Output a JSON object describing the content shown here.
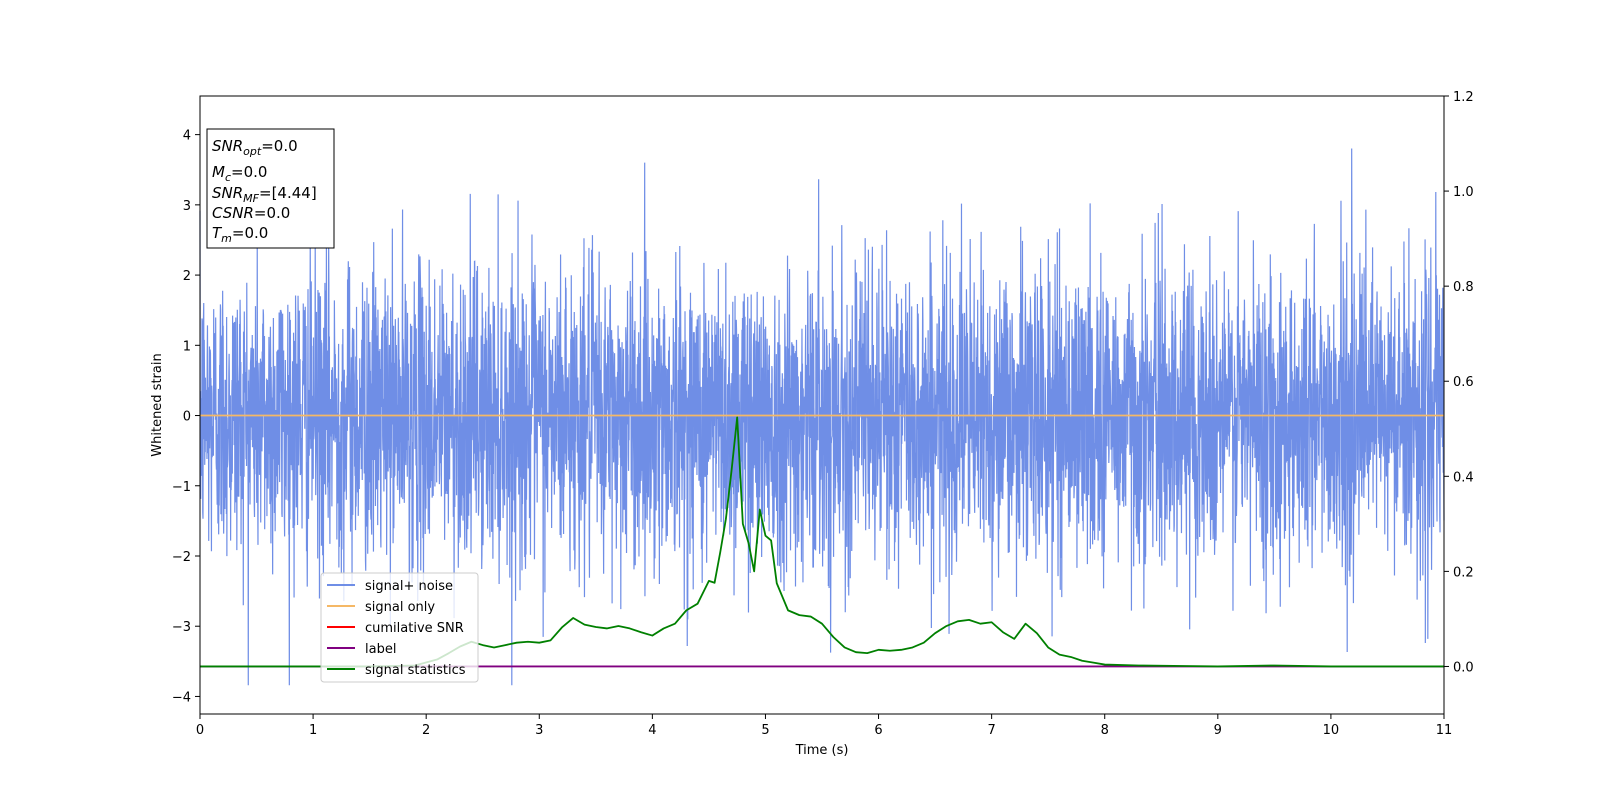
{
  "chart_data": {
    "type": "line",
    "xlabel": "Time (s)",
    "ylabel": "Whitened strain",
    "xlim": [
      0,
      11
    ],
    "ylim_left": [
      -4.25,
      4.55
    ],
    "ylim_right": [
      -0.1,
      1.2
    ],
    "x_ticks": [
      "0",
      "1",
      "2",
      "3",
      "4",
      "5",
      "6",
      "7",
      "8",
      "9",
      "10",
      "11"
    ],
    "y_ticks_left": [
      "−4",
      "−3",
      "−2",
      "−1",
      "0",
      "1",
      "2",
      "3",
      "4"
    ],
    "y_ticks_right": [
      "0.0",
      "0.2",
      "0.4",
      "0.6",
      "0.8",
      "1.0",
      "1.2"
    ],
    "legend_position": "lower-left",
    "series": [
      {
        "name": "signal+ noise",
        "color": "#6f8ee6",
        "axis": "left",
        "kind": "noise",
        "amplitude_range": [
          -3.84,
          4.18
        ]
      },
      {
        "name": "signal only",
        "color": "#f5b866",
        "axis": "left",
        "x": [
          0,
          11
        ],
        "y": [
          0,
          0
        ]
      },
      {
        "name": "cumilative SNR",
        "color": "#ff0000",
        "axis": "right",
        "x": [],
        "y": []
      },
      {
        "name": "label",
        "color": "#800080",
        "axis": "right",
        "x": [
          0,
          11
        ],
        "y": [
          0,
          0
        ]
      },
      {
        "name": "signal statistics",
        "color": "#008000",
        "axis": "right",
        "x": [
          0,
          1.5,
          1.9,
          2.1,
          2.2,
          2.3,
          2.4,
          2.5,
          2.6,
          2.7,
          2.8,
          2.9,
          3.0,
          3.1,
          3.2,
          3.3,
          3.4,
          3.5,
          3.6,
          3.7,
          3.8,
          3.9,
          4.0,
          4.1,
          4.2,
          4.3,
          4.4,
          4.5,
          4.55,
          4.6,
          4.65,
          4.7,
          4.75,
          4.8,
          4.85,
          4.9,
          4.95,
          5.0,
          5.05,
          5.1,
          5.2,
          5.3,
          5.4,
          5.5,
          5.6,
          5.7,
          5.8,
          5.9,
          6.0,
          6.1,
          6.2,
          6.3,
          6.4,
          6.5,
          6.6,
          6.7,
          6.8,
          6.9,
          7.0,
          7.1,
          7.2,
          7.3,
          7.4,
          7.5,
          7.6,
          7.7,
          7.8,
          7.9,
          8.0,
          8.3,
          8.7,
          9.0,
          9.5,
          10.0,
          11.0
        ],
        "y": [
          0,
          0,
          0.002,
          0.015,
          0.028,
          0.042,
          0.052,
          0.045,
          0.04,
          0.045,
          0.05,
          0.052,
          0.05,
          0.055,
          0.082,
          0.102,
          0.088,
          0.083,
          0.08,
          0.085,
          0.08,
          0.072,
          0.065,
          0.08,
          0.09,
          0.118,
          0.132,
          0.18,
          0.176,
          0.24,
          0.31,
          0.412,
          0.524,
          0.3,
          0.26,
          0.2,
          0.33,
          0.275,
          0.265,
          0.175,
          0.118,
          0.108,
          0.105,
          0.09,
          0.062,
          0.04,
          0.03,
          0.028,
          0.035,
          0.033,
          0.035,
          0.04,
          0.05,
          0.07,
          0.085,
          0.095,
          0.098,
          0.09,
          0.093,
          0.072,
          0.058,
          0.09,
          0.07,
          0.04,
          0.025,
          0.02,
          0.012,
          0.008,
          0.004,
          0.002,
          0.001,
          0.0,
          0.002,
          0.0,
          0.0
        ]
      }
    ]
  },
  "info_box": {
    "snr_opt": {
      "main": "SNR",
      "sub": "opt",
      "value": "=0.0"
    },
    "mc": {
      "main": "M",
      "sub": "c",
      "value": "=0.0"
    },
    "snr_mf": {
      "main": "SNR",
      "sub": "MF",
      "value": "=[4.44]"
    },
    "csnr": {
      "main": "CSNR",
      "value": "=0.0"
    },
    "tm": {
      "main": "T",
      "sub": "m",
      "value": "=0.0"
    }
  }
}
